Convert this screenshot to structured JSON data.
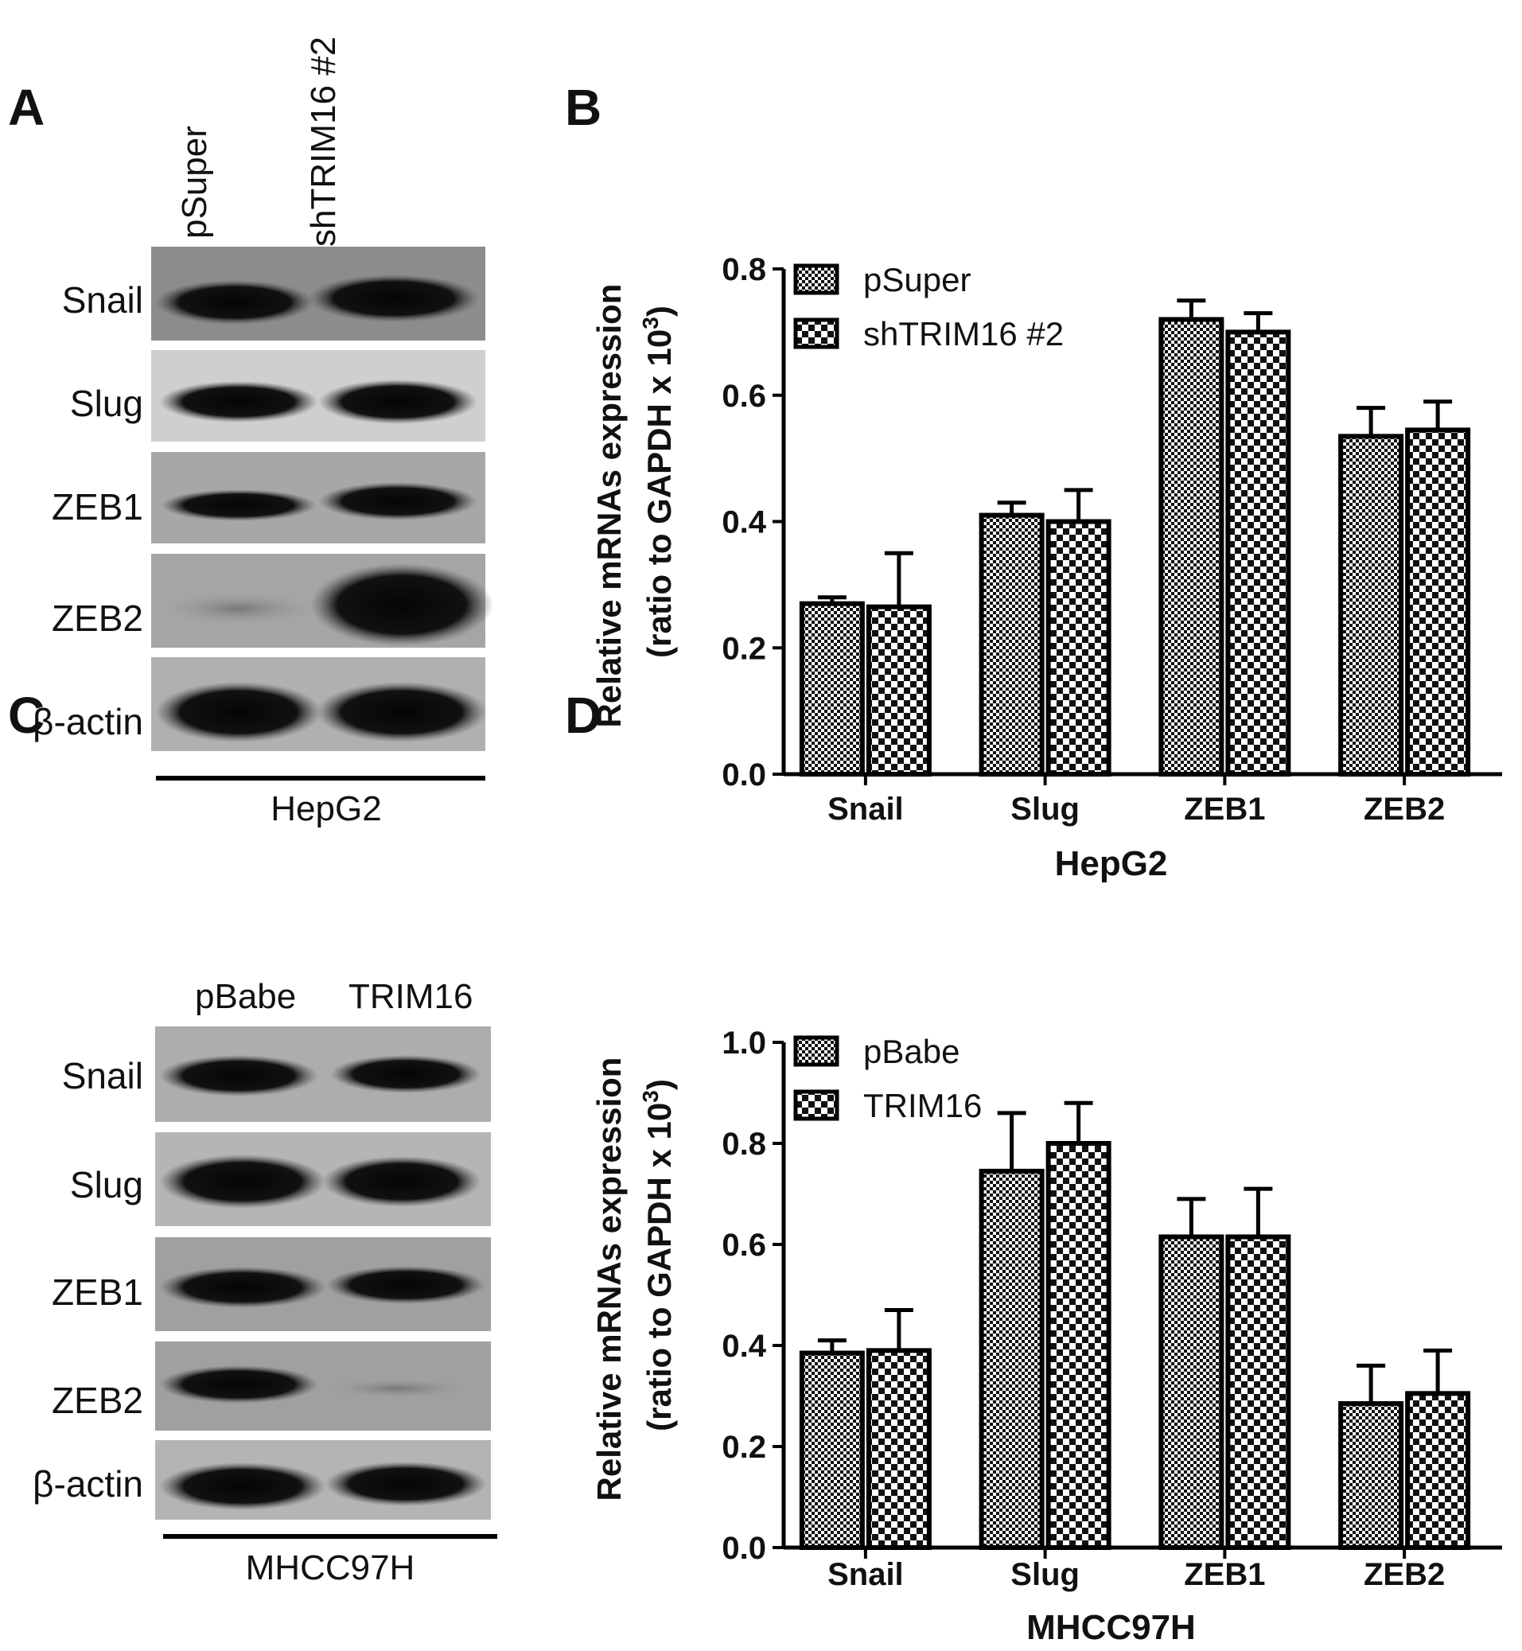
{
  "panels": {
    "A": {
      "letter": "A",
      "lanes": [
        "pSuper",
        "shTRIM16 #2"
      ],
      "rows": [
        "Snail",
        "Slug",
        "ZEB1",
        "ZEB2",
        "β-actin"
      ],
      "cell_line": "HepG2"
    },
    "B": {
      "letter": "B"
    },
    "C": {
      "letter": "C",
      "lanes": [
        "pBabe",
        "TRIM16"
      ],
      "rows": [
        "Snail",
        "Slug",
        "ZEB1",
        "ZEB2",
        "β-actin"
      ],
      "cell_line": "MHCC97H"
    },
    "D": {
      "letter": "D"
    }
  },
  "chart_data": [
    {
      "type": "bar",
      "panel": "B",
      "categories": [
        "Snail",
        "Slug",
        "ZEB1",
        "ZEB2"
      ],
      "ylabel_line1": "Relative  mRNAs expression",
      "ylabel_line2": "(ratio to  GAPDH x 10",
      "ylabel_sup": "3",
      "ylabel_close": ")",
      "xlabel": "HepG2",
      "ylim": [
        0,
        0.8
      ],
      "yticks": [
        "0.0",
        "0.2",
        "0.4",
        "0.6",
        "0.8"
      ],
      "legend_position": "top-left",
      "series": [
        {
          "name": "pSuper",
          "pattern": "fine-check",
          "values": [
            0.27,
            0.41,
            0.72,
            0.535
          ],
          "errors": [
            0.01,
            0.02,
            0.03,
            0.045
          ]
        },
        {
          "name": "shTRIM16 #2",
          "pattern": "coarse-check",
          "values": [
            0.265,
            0.4,
            0.7,
            0.545
          ],
          "errors": [
            0.085,
            0.05,
            0.03,
            0.045
          ]
        }
      ]
    },
    {
      "type": "bar",
      "panel": "D",
      "categories": [
        "Snail",
        "Slug",
        "ZEB1",
        "ZEB2"
      ],
      "ylabel_line1": "Relative  mRNAs expression",
      "ylabel_line2": "(ratio to  GAPDH x 10",
      "ylabel_sup": "3",
      "ylabel_close": ")",
      "xlabel": "MHCC97H",
      "ylim": [
        0,
        1.0
      ],
      "yticks": [
        "0.0",
        "0.2",
        "0.4",
        "0.6",
        "0.8",
        "1.0"
      ],
      "legend_position": "top-left",
      "series": [
        {
          "name": "pBabe",
          "pattern": "fine-check",
          "values": [
            0.385,
            0.745,
            0.615,
            0.285
          ],
          "errors": [
            0.025,
            0.115,
            0.075,
            0.075
          ]
        },
        {
          "name": "TRIM16",
          "pattern": "coarse-check",
          "values": [
            0.39,
            0.8,
            0.615,
            0.305
          ],
          "errors": [
            0.08,
            0.08,
            0.095,
            0.085
          ]
        }
      ]
    }
  ]
}
